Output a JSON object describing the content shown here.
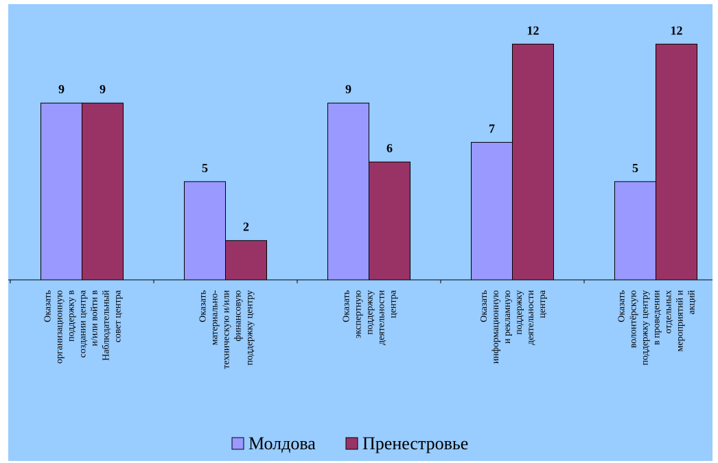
{
  "chart_data": {
    "type": "bar",
    "categories": [
      "Оказать организационную поддержку в создании центра и/или войти в Наблюдательный совет центра",
      "Оказать материально-техническую и/или финансовую поддержку центру",
      "Оказать экспертную поддержку деятельности центра",
      "Оказать информационную и рекламную поддержку деятельности центра",
      "Оказать волонтёрскую поддержку центру в проведении отдельных мероприятий и акций"
    ],
    "category_lines": [
      [
        "Оказать",
        "организационную",
        "поддержку в",
        "создании центра",
        "и/или войти в",
        "Наблюдательный",
        "совет центра"
      ],
      [
        "Оказать",
        "материально-",
        "техническую и/или",
        "финансовую",
        "поддержку центру"
      ],
      [
        "Оказать",
        "экспертную",
        "поддержку",
        "деятельности",
        "центра"
      ],
      [
        "Оказать",
        "информационную",
        "и рекламную",
        "поддержку",
        "деятельности",
        "центра"
      ],
      [
        "Оказать",
        "волонтёрскую",
        "поддержку центру",
        "в проведении",
        "отдельных",
        "мероприятий и",
        "акций"
      ]
    ],
    "series": [
      {
        "name": "Молдова",
        "values": [
          9,
          5,
          9,
          7,
          5
        ],
        "color": "#9999FF"
      },
      {
        "name": "Пренестровье",
        "values": [
          9,
          2,
          6,
          12,
          12
        ],
        "color": "#993366"
      }
    ],
    "ylim": [
      0,
      12.5
    ],
    "grid": false,
    "legend_position": "bottom",
    "background_color": "#99CCFF",
    "title": "",
    "xlabel": "",
    "ylabel": ""
  }
}
